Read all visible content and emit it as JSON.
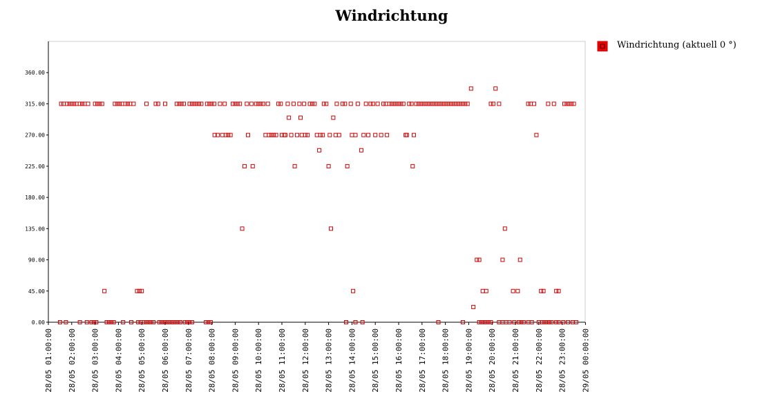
{
  "chart_data": {
    "type": "scatter",
    "title": "Windrichtung",
    "legend": {
      "label": "Windrichtung (aktuell 0 °)",
      "placement": "top-right"
    },
    "colors": {
      "marker": "#cc0000",
      "legend_fill": "#ee0000",
      "axis": "#000000",
      "frame": "#cccccc"
    },
    "ylim": [
      0,
      405
    ],
    "yticks": [
      "0.00",
      "45.00",
      "90.00",
      "135.00",
      "180.00",
      "225.00",
      "270.00",
      "315.00",
      "360.00"
    ],
    "xlim": [
      0,
      23
    ],
    "xticks": [
      "28/05 01:00:00",
      "28/05 02:00:00",
      "28/05 03:00:00",
      "28/05 04:00:00",
      "28/05 05:00:00",
      "28/05 06:00:00",
      "28/05 07:00:00",
      "28/05 08:00:00",
      "28/05 09:00:00",
      "28/05 10:00:00",
      "28/05 11:00:00",
      "28/05 12:00:00",
      "28/05 13:00:00",
      "28/05 14:00:00",
      "28/05 15:00:00",
      "28/05 16:00:00",
      "28/05 17:00:00",
      "28/05 18:00:00",
      "28/05 19:00:00",
      "28/05 20:00:00",
      "28/05 21:00:00",
      "28/05 22:00:00",
      "28/05 23:00:00",
      "29/05 00:00:00"
    ],
    "series": [
      {
        "name": "Windrichtung (aktuell 0 °)",
        "points": [
          [
            0.55,
            315
          ],
          [
            0.65,
            315
          ],
          [
            0.8,
            315
          ],
          [
            0.9,
            315
          ],
          [
            1.0,
            315
          ],
          [
            1.1,
            315
          ],
          [
            1.2,
            315
          ],
          [
            1.35,
            315
          ],
          [
            1.45,
            315
          ],
          [
            1.55,
            315
          ],
          [
            1.7,
            315
          ],
          [
            2.0,
            315
          ],
          [
            2.1,
            315
          ],
          [
            2.2,
            315
          ],
          [
            2.3,
            315
          ],
          [
            2.4,
            45
          ],
          [
            2.85,
            315
          ],
          [
            2.95,
            315
          ],
          [
            3.05,
            315
          ],
          [
            3.15,
            315
          ],
          [
            3.3,
            315
          ],
          [
            3.4,
            315
          ],
          [
            3.5,
            315
          ],
          [
            3.65,
            315
          ],
          [
            3.8,
            45
          ],
          [
            3.9,
            45
          ],
          [
            4.0,
            45
          ],
          [
            4.2,
            315
          ],
          [
            4.6,
            315
          ],
          [
            4.7,
            315
          ],
          [
            5.0,
            315
          ],
          [
            5.5,
            315
          ],
          [
            5.6,
            315
          ],
          [
            5.7,
            315
          ],
          [
            5.8,
            315
          ],
          [
            6.05,
            315
          ],
          [
            6.15,
            315
          ],
          [
            6.25,
            315
          ],
          [
            6.35,
            315
          ],
          [
            6.45,
            315
          ],
          [
            6.55,
            315
          ],
          [
            6.8,
            315
          ],
          [
            6.9,
            315
          ],
          [
            7.0,
            315
          ],
          [
            7.1,
            315
          ],
          [
            7.12,
            270
          ],
          [
            7.25,
            270
          ],
          [
            7.35,
            315
          ],
          [
            7.45,
            270
          ],
          [
            7.55,
            315
          ],
          [
            7.6,
            270
          ],
          [
            7.7,
            270
          ],
          [
            7.8,
            270
          ],
          [
            7.9,
            315
          ],
          [
            8.0,
            315
          ],
          [
            8.1,
            315
          ],
          [
            8.2,
            315
          ],
          [
            8.3,
            135
          ],
          [
            8.4,
            225
          ],
          [
            8.5,
            315
          ],
          [
            8.55,
            270
          ],
          [
            8.7,
            315
          ],
          [
            8.75,
            225
          ],
          [
            8.9,
            315
          ],
          [
            9.0,
            315
          ],
          [
            9.1,
            315
          ],
          [
            9.2,
            315
          ],
          [
            9.3,
            270
          ],
          [
            9.4,
            315
          ],
          [
            9.45,
            270
          ],
          [
            9.55,
            270
          ],
          [
            9.65,
            270
          ],
          [
            9.75,
            270
          ],
          [
            9.85,
            315
          ],
          [
            9.95,
            315
          ],
          [
            10.0,
            270
          ],
          [
            10.1,
            270
          ],
          [
            10.15,
            270
          ],
          [
            10.25,
            315
          ],
          [
            10.3,
            295
          ],
          [
            10.4,
            270
          ],
          [
            10.5,
            315
          ],
          [
            10.55,
            225
          ],
          [
            10.65,
            270
          ],
          [
            10.75,
            315
          ],
          [
            10.8,
            295
          ],
          [
            10.85,
            270
          ],
          [
            10.95,
            315
          ],
          [
            11.0,
            270
          ],
          [
            11.1,
            270
          ],
          [
            11.2,
            315
          ],
          [
            11.3,
            315
          ],
          [
            11.4,
            315
          ],
          [
            11.5,
            270
          ],
          [
            11.6,
            248
          ],
          [
            11.65,
            270
          ],
          [
            11.75,
            270
          ],
          [
            11.8,
            315
          ],
          [
            11.9,
            315
          ],
          [
            12.0,
            225
          ],
          [
            12.05,
            270
          ],
          [
            12.1,
            135
          ],
          [
            12.2,
            295
          ],
          [
            12.3,
            270
          ],
          [
            12.35,
            315
          ],
          [
            12.45,
            270
          ],
          [
            12.6,
            315
          ],
          [
            12.7,
            315
          ],
          [
            12.8,
            225
          ],
          [
            12.95,
            315
          ],
          [
            13.0,
            270
          ],
          [
            13.05,
            45
          ],
          [
            13.15,
            270
          ],
          [
            13.25,
            315
          ],
          [
            13.4,
            248
          ],
          [
            13.5,
            270
          ],
          [
            13.6,
            315
          ],
          [
            13.7,
            270
          ],
          [
            13.8,
            315
          ],
          [
            13.9,
            315
          ],
          [
            14.0,
            270
          ],
          [
            14.1,
            315
          ],
          [
            14.25,
            270
          ],
          [
            14.35,
            315
          ],
          [
            14.45,
            315
          ],
          [
            14.5,
            270
          ],
          [
            14.6,
            315
          ],
          [
            14.7,
            315
          ],
          [
            14.8,
            315
          ],
          [
            14.9,
            315
          ],
          [
            15.0,
            315
          ],
          [
            15.1,
            315
          ],
          [
            15.2,
            315
          ],
          [
            15.3,
            270
          ],
          [
            15.35,
            270
          ],
          [
            15.45,
            315
          ],
          [
            15.55,
            315
          ],
          [
            15.6,
            225
          ],
          [
            15.65,
            270
          ],
          [
            15.75,
            315
          ],
          [
            15.85,
            315
          ],
          [
            15.95,
            315
          ],
          [
            16.05,
            315
          ],
          [
            16.15,
            315
          ],
          [
            16.25,
            315
          ],
          [
            16.35,
            315
          ],
          [
            16.45,
            315
          ],
          [
            16.55,
            315
          ],
          [
            16.65,
            315
          ],
          [
            16.75,
            315
          ],
          [
            16.85,
            315
          ],
          [
            16.95,
            315
          ],
          [
            17.05,
            315
          ],
          [
            17.15,
            315
          ],
          [
            17.25,
            315
          ],
          [
            17.35,
            315
          ],
          [
            17.45,
            315
          ],
          [
            17.55,
            315
          ],
          [
            17.65,
            315
          ],
          [
            17.75,
            315
          ],
          [
            17.85,
            315
          ],
          [
            17.95,
            315
          ],
          [
            18.1,
            337
          ],
          [
            18.2,
            22
          ],
          [
            18.35,
            90
          ],
          [
            18.45,
            90
          ],
          [
            18.6,
            45
          ],
          [
            18.75,
            45
          ],
          [
            18.95,
            315
          ],
          [
            19.05,
            315
          ],
          [
            19.15,
            337
          ],
          [
            19.3,
            315
          ],
          [
            19.45,
            90
          ],
          [
            19.55,
            135
          ],
          [
            19.9,
            45
          ],
          [
            20.1,
            45
          ],
          [
            20.2,
            90
          ],
          [
            20.55,
            315
          ],
          [
            20.65,
            315
          ],
          [
            20.8,
            315
          ],
          [
            20.9,
            270
          ],
          [
            21.1,
            45
          ],
          [
            21.2,
            45
          ],
          [
            21.4,
            315
          ],
          [
            21.65,
            315
          ],
          [
            21.75,
            45
          ],
          [
            21.85,
            45
          ],
          [
            22.1,
            315
          ],
          [
            22.2,
            315
          ],
          [
            22.3,
            315
          ],
          [
            22.4,
            315
          ],
          [
            22.5,
            315
          ],
          [
            0.5,
            0
          ],
          [
            0.75,
            0
          ],
          [
            1.35,
            0
          ],
          [
            1.65,
            0
          ],
          [
            1.85,
            0
          ],
          [
            1.95,
            0
          ],
          [
            2.05,
            0
          ],
          [
            2.5,
            0
          ],
          [
            2.6,
            0
          ],
          [
            2.7,
            0
          ],
          [
            2.8,
            0
          ],
          [
            3.2,
            0
          ],
          [
            3.55,
            0
          ],
          [
            3.85,
            0
          ],
          [
            3.95,
            0
          ],
          [
            4.1,
            0
          ],
          [
            4.2,
            0
          ],
          [
            4.3,
            0
          ],
          [
            4.4,
            0
          ],
          [
            4.5,
            0
          ],
          [
            4.75,
            0
          ],
          [
            4.85,
            0
          ],
          [
            4.95,
            0
          ],
          [
            5.05,
            0
          ],
          [
            5.15,
            0
          ],
          [
            5.25,
            0
          ],
          [
            5.35,
            0
          ],
          [
            5.45,
            0
          ],
          [
            5.55,
            0
          ],
          [
            5.65,
            0
          ],
          [
            5.85,
            0
          ],
          [
            5.95,
            0
          ],
          [
            6.05,
            0
          ],
          [
            6.15,
            0
          ],
          [
            6.75,
            0
          ],
          [
            6.85,
            0
          ],
          [
            6.95,
            0
          ],
          [
            12.75,
            0
          ],
          [
            13.15,
            0
          ],
          [
            13.45,
            0
          ],
          [
            16.7,
            0
          ],
          [
            17.75,
            0
          ],
          [
            18.45,
            0
          ],
          [
            18.55,
            0
          ],
          [
            18.65,
            0
          ],
          [
            18.75,
            0
          ],
          [
            18.85,
            0
          ],
          [
            18.95,
            0
          ],
          [
            19.3,
            0
          ],
          [
            19.45,
            0
          ],
          [
            19.6,
            0
          ],
          [
            19.75,
            0
          ],
          [
            19.95,
            0
          ],
          [
            20.15,
            0
          ],
          [
            20.25,
            0
          ],
          [
            20.35,
            0
          ],
          [
            20.55,
            0
          ],
          [
            20.7,
            0
          ],
          [
            21.0,
            0
          ],
          [
            21.15,
            0
          ],
          [
            21.25,
            0
          ],
          [
            21.35,
            0
          ],
          [
            21.45,
            0
          ],
          [
            21.55,
            0
          ],
          [
            21.75,
            0
          ],
          [
            21.85,
            0
          ],
          [
            22.05,
            0
          ],
          [
            22.25,
            0
          ],
          [
            22.45,
            0
          ],
          [
            22.6,
            0
          ]
        ]
      }
    ]
  }
}
